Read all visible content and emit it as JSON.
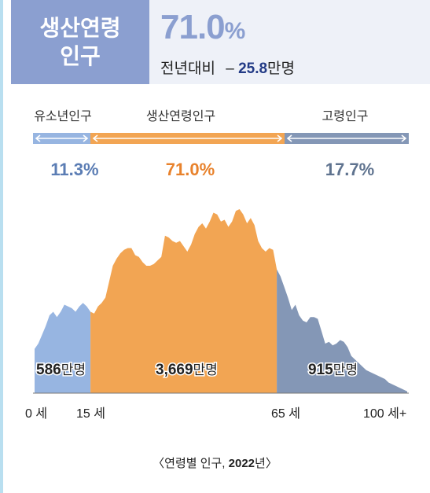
{
  "header": {
    "title_line1": "생산연령",
    "title_line2": "인구",
    "share_value": "71.0",
    "share_unit": "%",
    "change_label": "전년대비",
    "change_dash": "–",
    "change_value": "25.8",
    "change_unit": "만명"
  },
  "caption": {
    "prefix": "〈연령별 인구, ",
    "year": "2022",
    "suffix": "년〉"
  },
  "colors": {
    "youth": "#97b5e1",
    "working": "#f2a553",
    "elderly": "#8497b6",
    "youth_text": "#5b7db4",
    "working_text": "#e8822c",
    "elderly_text": "#5f738f",
    "header_box": "#8b9fd0"
  },
  "chart_data": {
    "type": "area",
    "xlabel": "",
    "ylabel": "",
    "x_ticks": [
      "0 세",
      "15 세",
      "65 세",
      "100 세+"
    ],
    "segments": [
      {
        "name": "유소년인구",
        "share": "11.3%",
        "total": "586",
        "total_unit": "만명",
        "age_range": [
          0,
          15
        ]
      },
      {
        "name": "생산연령인구",
        "share": "71.0%",
        "total": "3,669",
        "total_unit": "만명",
        "age_range": [
          15,
          65
        ]
      },
      {
        "name": "고령인구",
        "share": "17.7%",
        "total": "915",
        "total_unit": "만명",
        "age_range": [
          65,
          100
        ]
      }
    ],
    "series": [
      {
        "x": [
          0,
          1,
          2,
          3,
          4,
          5,
          6,
          7,
          8,
          9,
          10,
          11,
          12,
          13,
          14,
          15,
          16,
          17,
          18,
          19,
          20,
          21,
          22,
          23,
          24,
          25,
          26,
          27,
          28,
          29,
          30,
          31,
          32,
          33,
          34,
          35,
          36,
          37,
          38,
          39,
          40,
          41,
          42,
          43,
          44,
          45,
          46,
          47,
          48,
          49,
          50,
          51,
          52,
          53,
          54,
          55,
          56,
          57,
          58,
          59,
          60,
          61,
          62,
          63,
          64,
          65,
          66,
          67,
          68,
          69,
          70,
          71,
          72,
          73,
          74,
          75,
          76,
          77,
          78,
          79,
          80,
          81,
          82,
          83,
          84,
          85,
          86,
          87,
          88,
          89,
          90,
          91,
          92,
          93,
          94,
          95,
          96,
          97,
          98,
          99,
          100
        ],
        "values": [
          25,
          28,
          33,
          38,
          44,
          46,
          43,
          46,
          50,
          49,
          48,
          46,
          49,
          51,
          49,
          46,
          45,
          49,
          51,
          54,
          63,
          72,
          76,
          79,
          81,
          82,
          82,
          78,
          77,
          74,
          72,
          72,
          73,
          75,
          77,
          89,
          88,
          86,
          85,
          86,
          83,
          80,
          84,
          90,
          94,
          96,
          93,
          97,
          102,
          101,
          97,
          98,
          94,
          97,
          103,
          104,
          101,
          96,
          99,
          95,
          86,
          82,
          80,
          82,
          81,
          70,
          66,
          60,
          54,
          47,
          50,
          44,
          41,
          40,
          43,
          43,
          42,
          35,
          28,
          29,
          27,
          28,
          30,
          29,
          26,
          21,
          19,
          17,
          15,
          13,
          12,
          11,
          10,
          9,
          8,
          6,
          5,
          4,
          3,
          2,
          1
        ],
        "unit": "만명 (approx.)"
      }
    ]
  }
}
